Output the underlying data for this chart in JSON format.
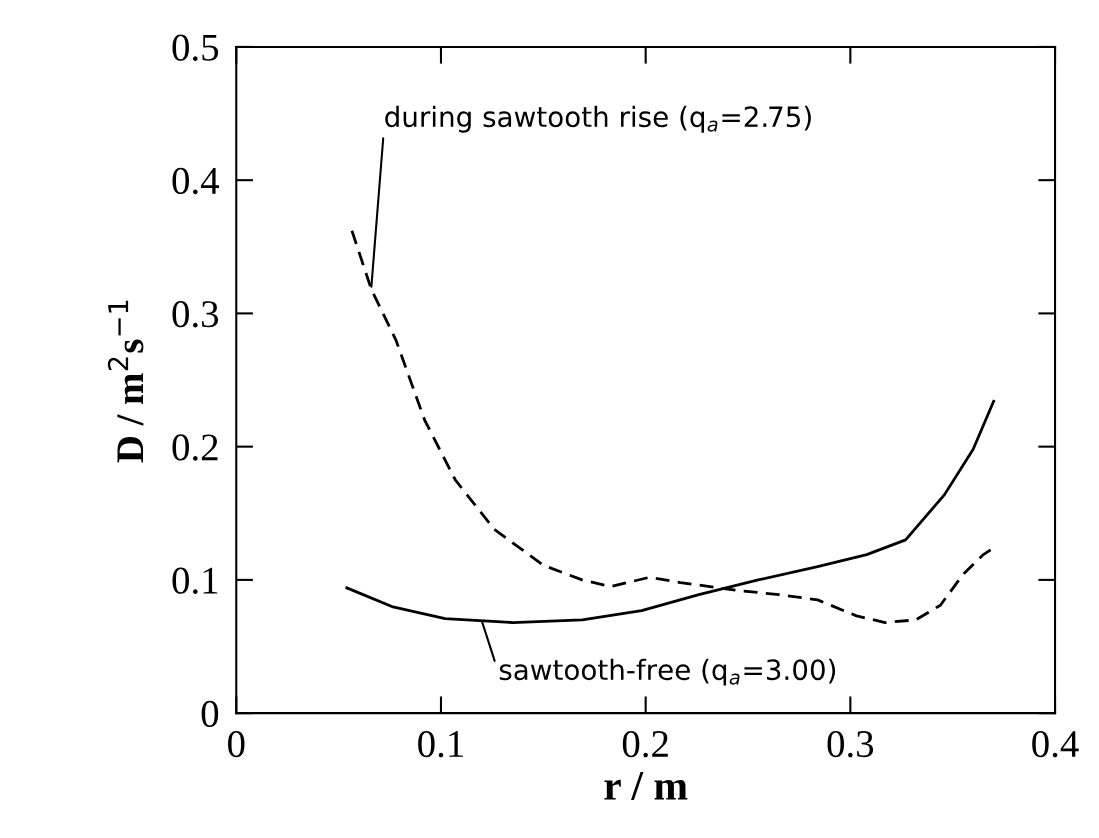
{
  "chart_data": {
    "type": "line",
    "xlabel": "r / m",
    "ylabel": "D / m$^{2}$s$^{−1}$",
    "xlim": [
      0,
      0.4
    ],
    "ylim": [
      0,
      0.5
    ],
    "xticks": [
      0,
      0.1,
      0.2,
      0.3,
      0.4
    ],
    "yticks": [
      0,
      0.1,
      0.2,
      0.3,
      0.4,
      0.5
    ],
    "grid": false,
    "legend": false,
    "marker": "none",
    "series": [
      {
        "color": "#000000",
        "line_style": "dashed",
        "x": [
          0.0565,
          0.066,
          0.078,
          0.092,
          0.107,
          0.126,
          0.15,
          0.169,
          0.183,
          0.202,
          0.217,
          0.245,
          0.265,
          0.284,
          0.303,
          0.317,
          0.332,
          0.344,
          0.355,
          0.365,
          0.37
        ],
        "values": [
          0.362,
          0.318,
          0.28,
          0.22,
          0.175,
          0.138,
          0.111,
          0.1,
          0.095,
          0.102,
          0.098,
          0.092,
          0.089,
          0.085,
          0.073,
          0.068,
          0.07,
          0.081,
          0.104,
          0.119,
          0.124
        ]
      },
      {
        "color": "#000000",
        "line_style": "solid",
        "x": [
          0.054,
          0.076,
          0.102,
          0.135,
          0.169,
          0.198,
          0.226,
          0.255,
          0.284,
          0.308,
          0.327,
          0.346,
          0.36,
          0.37
        ],
        "values": [
          0.094,
          0.08,
          0.071,
          0.068,
          0.07,
          0.077,
          0.089,
          0.1,
          0.11,
          0.119,
          0.13,
          0.164,
          0.198,
          0.234
        ]
      }
    ],
    "annotations": [
      {
        "text": "during sawtooth rise (q$_{a}$=2.75)",
        "x": 0.066,
        "y": 0.32
      },
      {
        "text": "sawtooth-free (q$_{a}$=3.00)",
        "x": 0.12,
        "y": 0.069
      }
    ]
  }
}
